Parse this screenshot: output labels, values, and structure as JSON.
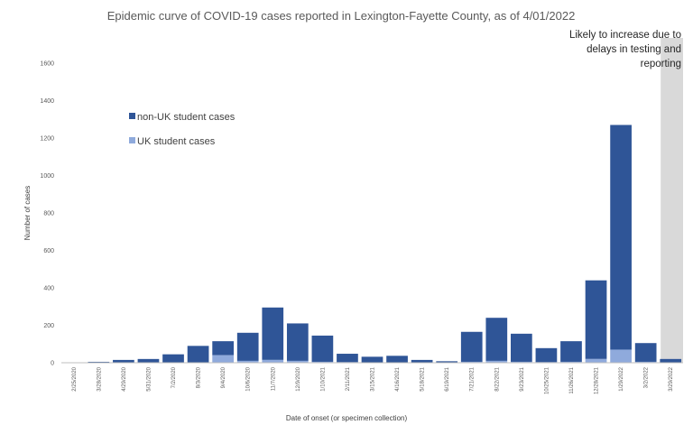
{
  "chart_data": {
    "type": "bar",
    "stacked": true,
    "title": "Epidemic curve of COVID-19 cases reported in Lexington-Fayette County, as of 4/01/2022",
    "xlabel": "Date of onset (or specimen collection)",
    "ylabel": "Number of cases",
    "ylim": [
      0,
      1600
    ],
    "yticks": [
      0,
      200,
      400,
      600,
      800,
      1000,
      1200,
      1400,
      1600
    ],
    "grid": false,
    "legend_position": "left",
    "categories": [
      "2/25/2020",
      "3/28/2020",
      "4/29/2020",
      "5/31/2020",
      "7/2/2020",
      "8/3/2020",
      "9/4/2020",
      "10/6/2020",
      "11/7/2020",
      "12/9/2020",
      "1/10/2021",
      "2/11/2021",
      "3/15/2021",
      "4/16/2021",
      "5/18/2021",
      "6/19/2021",
      "7/21/2021",
      "8/22/2021",
      "9/23/2021",
      "10/25/2021",
      "11/26/2021",
      "12/28/2021",
      "1/29/2022",
      "3/2/2022",
      "3/29/2022"
    ],
    "series": [
      {
        "name": "non-UK student cases",
        "color": "#2f5597",
        "values": [
          0,
          5,
          15,
          20,
          45,
          90,
          75,
          150,
          280,
          200,
          140,
          45,
          30,
          35,
          15,
          8,
          160,
          230,
          150,
          75,
          110,
          420,
          1200,
          100,
          20
        ]
      },
      {
        "name": "UK student cases",
        "color": "#8faadc",
        "values": [
          0,
          0,
          0,
          0,
          0,
          0,
          40,
          10,
          15,
          10,
          5,
          3,
          2,
          2,
          0,
          0,
          5,
          10,
          5,
          3,
          5,
          20,
          70,
          5,
          0
        ]
      }
    ],
    "annotation": {
      "text_lines": [
        "Likely to increase due to",
        "delays in testing and",
        "reporting"
      ],
      "shaded_region": [
        "3/18/2022",
        "3/29/2022"
      ]
    }
  }
}
